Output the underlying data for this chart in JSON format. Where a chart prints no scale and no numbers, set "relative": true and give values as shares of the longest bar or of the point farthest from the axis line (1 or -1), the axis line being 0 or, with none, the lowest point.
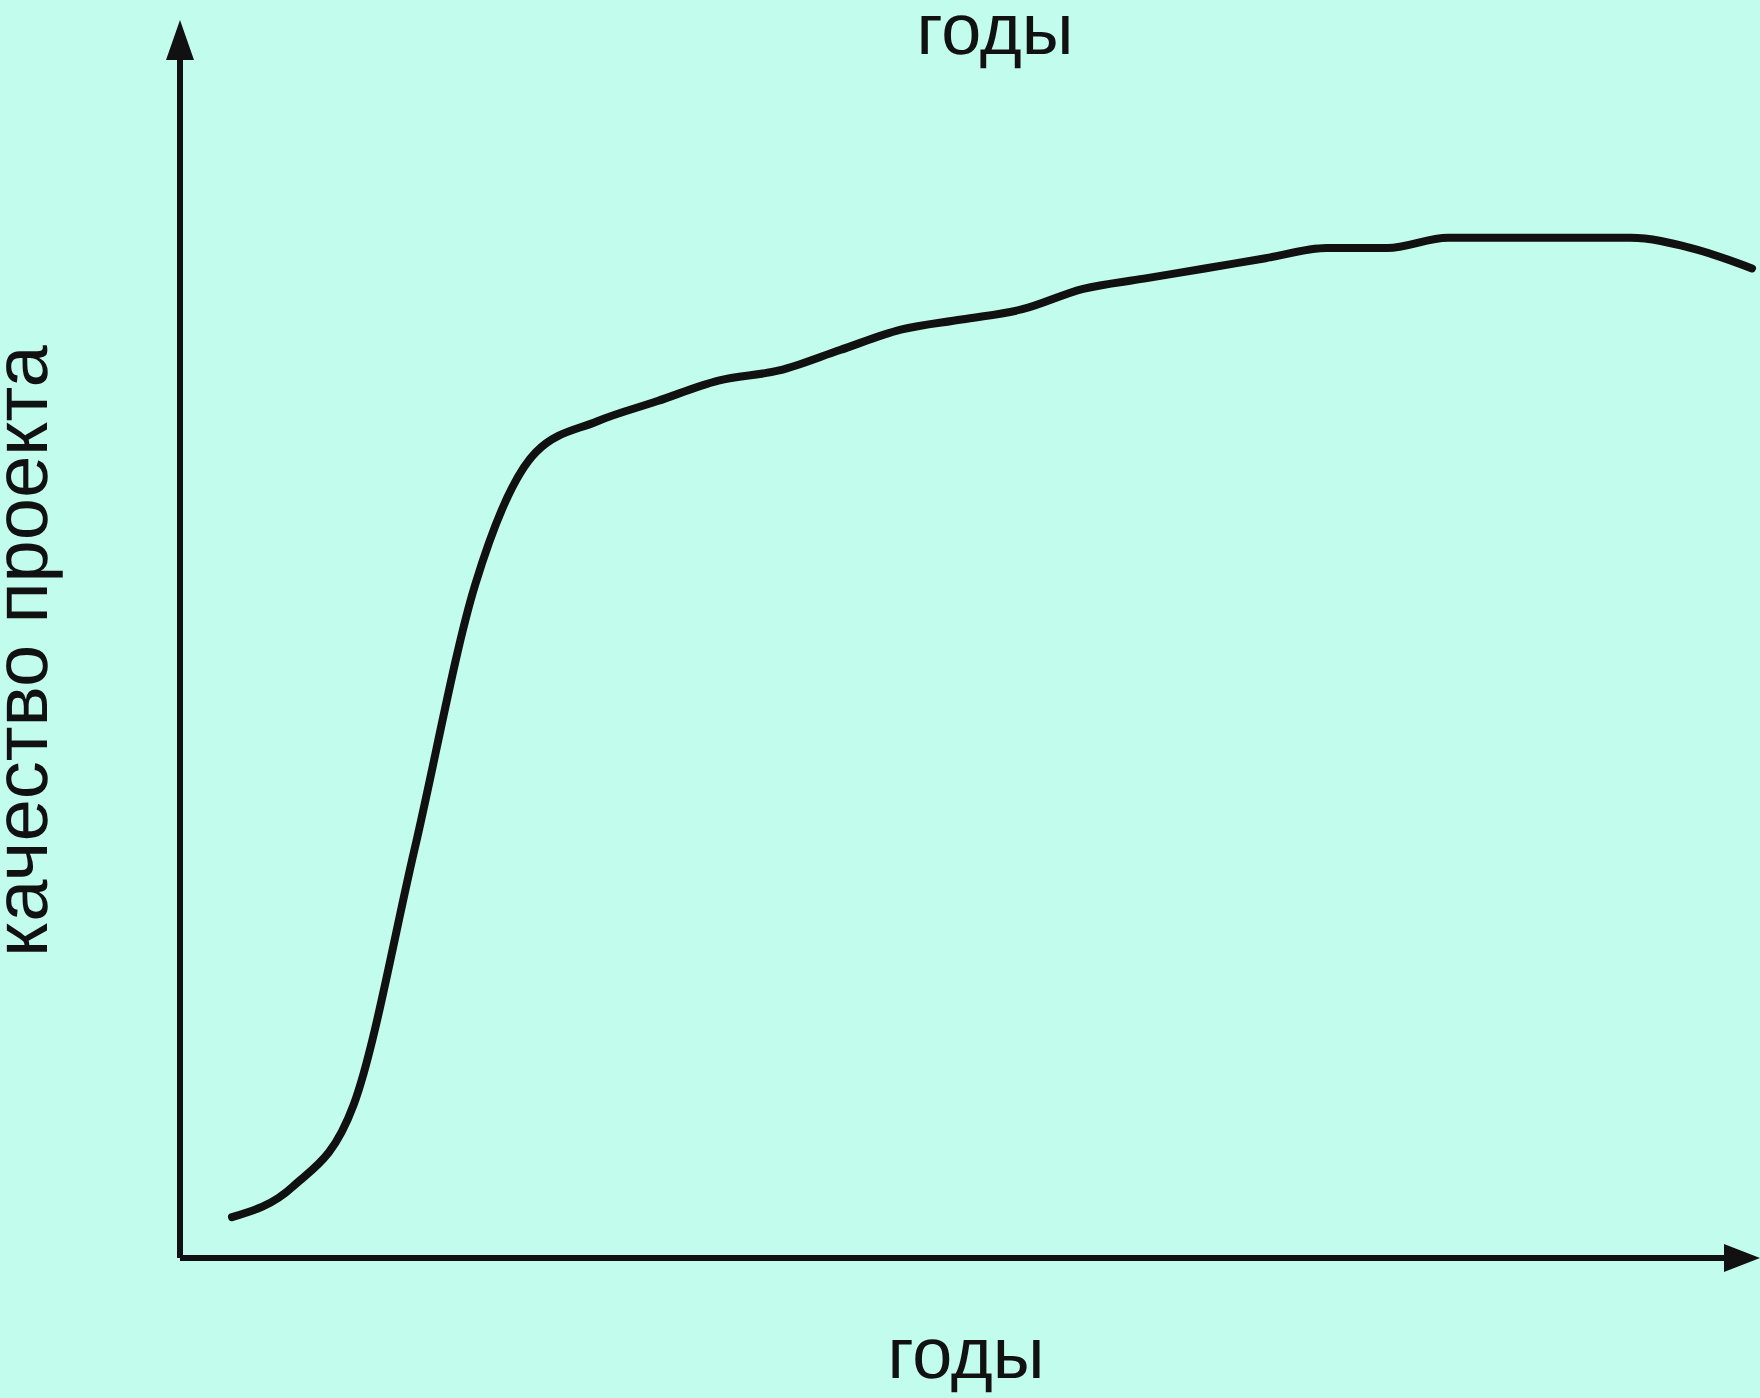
{
  "chart_data": {
    "type": "line",
    "title": "годы",
    "xlabel": "годы",
    "ylabel": "качество проекта",
    "relative": true,
    "categories": [
      null,
      null,
      null,
      null,
      null,
      null,
      null,
      null,
      null,
      null,
      null,
      null,
      null,
      null,
      null,
      null,
      null,
      null,
      null,
      null,
      null,
      null,
      null,
      null,
      null,
      null
    ],
    "series": [
      {
        "color": "#111111",
        "values": [
          0.04,
          0.07,
          0.15,
          0.4,
          0.66,
          0.79,
          0.82,
          0.84,
          0.86,
          0.87,
          0.89,
          0.91,
          0.92,
          0.93,
          0.95,
          0.96,
          0.97,
          0.98,
          0.99,
          0.99,
          1.0,
          1.0,
          1.0,
          1.0,
          0.99,
          0.97
        ]
      }
    ],
    "grid": false,
    "legend": false,
    "marker": "none",
    "line_style": "solid"
  }
}
